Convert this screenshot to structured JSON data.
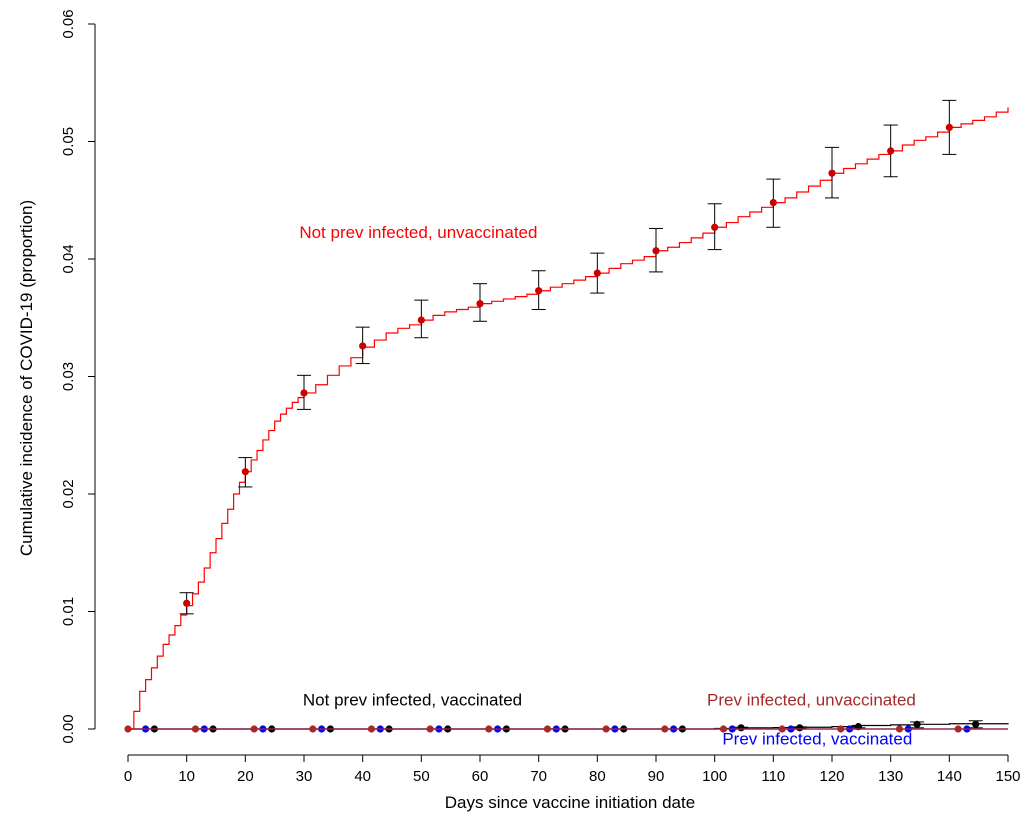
{
  "chart_data": {
    "type": "line",
    "xlabel": "Days since vaccine initiation date",
    "ylabel": "Cumulative incidence of COVID-19 (proportion)",
    "xlim": [
      0,
      150
    ],
    "ylim": [
      0,
      0.06
    ],
    "x_ticks": [
      "0",
      "10",
      "20",
      "30",
      "40",
      "50",
      "60",
      "70",
      "80",
      "90",
      "100",
      "110",
      "120",
      "130",
      "140",
      "150"
    ],
    "y_ticks": [
      "0.00",
      "0.01",
      "0.02",
      "0.03",
      "0.04",
      "0.05",
      "0.06"
    ],
    "grid": false,
    "series": [
      {
        "name": "Not prev infected, unvaccinated",
        "color": "#ff0000",
        "marker_color": "#cc0000",
        "label_color": "#ff0000",
        "curve": [
          [
            0,
            0
          ],
          [
            1,
            0.0015
          ],
          [
            2,
            0.0032
          ],
          [
            3,
            0.0042
          ],
          [
            4,
            0.0052
          ],
          [
            5,
            0.0062
          ],
          [
            6,
            0.0072
          ],
          [
            7,
            0.008
          ],
          [
            8,
            0.0088
          ],
          [
            9,
            0.0097
          ],
          [
            10,
            0.0105
          ],
          [
            11,
            0.0115
          ],
          [
            12,
            0.0125
          ],
          [
            13,
            0.0137
          ],
          [
            14,
            0.015
          ],
          [
            15,
            0.0162
          ],
          [
            16,
            0.0175
          ],
          [
            17,
            0.0187
          ],
          [
            18,
            0.02
          ],
          [
            19,
            0.021
          ],
          [
            20,
            0.0219
          ],
          [
            21,
            0.0229
          ],
          [
            22,
            0.0237
          ],
          [
            23,
            0.0246
          ],
          [
            24,
            0.0254
          ],
          [
            25,
            0.0262
          ],
          [
            26,
            0.0268
          ],
          [
            27,
            0.0273
          ],
          [
            28,
            0.0278
          ],
          [
            29,
            0.0282
          ],
          [
            30,
            0.0286
          ],
          [
            32,
            0.0293
          ],
          [
            34,
            0.0301
          ],
          [
            36,
            0.0309
          ],
          [
            38,
            0.0316
          ],
          [
            40,
            0.0325
          ],
          [
            42,
            0.0331
          ],
          [
            44,
            0.0337
          ],
          [
            46,
            0.0341
          ],
          [
            48,
            0.0344
          ],
          [
            50,
            0.0348
          ],
          [
            52,
            0.0352
          ],
          [
            54,
            0.0355
          ],
          [
            56,
            0.0357
          ],
          [
            58,
            0.0359
          ],
          [
            60,
            0.0362
          ],
          [
            62,
            0.0364
          ],
          [
            64,
            0.0366
          ],
          [
            66,
            0.0368
          ],
          [
            68,
            0.037
          ],
          [
            70,
            0.0373
          ],
          [
            72,
            0.0376
          ],
          [
            74,
            0.0379
          ],
          [
            76,
            0.0382
          ],
          [
            78,
            0.0385
          ],
          [
            80,
            0.0388
          ],
          [
            82,
            0.0392
          ],
          [
            84,
            0.0396
          ],
          [
            86,
            0.0399
          ],
          [
            88,
            0.0402
          ],
          [
            90,
            0.0407
          ],
          [
            92,
            0.041
          ],
          [
            94,
            0.0414
          ],
          [
            96,
            0.0418
          ],
          [
            98,
            0.0422
          ],
          [
            100,
            0.0427
          ],
          [
            102,
            0.0431
          ],
          [
            104,
            0.0436
          ],
          [
            106,
            0.044
          ],
          [
            108,
            0.0444
          ],
          [
            110,
            0.0448
          ],
          [
            112,
            0.0452
          ],
          [
            114,
            0.0457
          ],
          [
            116,
            0.0462
          ],
          [
            118,
            0.0467
          ],
          [
            120,
            0.0473
          ],
          [
            122,
            0.0477
          ],
          [
            124,
            0.0481
          ],
          [
            126,
            0.0485
          ],
          [
            128,
            0.0489
          ],
          [
            130,
            0.0492
          ],
          [
            132,
            0.0497
          ],
          [
            134,
            0.0501
          ],
          [
            136,
            0.0504
          ],
          [
            138,
            0.0508
          ],
          [
            140,
            0.0512
          ],
          [
            142,
            0.0515
          ],
          [
            144,
            0.0518
          ],
          [
            146,
            0.0521
          ],
          [
            148,
            0.0525
          ],
          [
            150,
            0.0529
          ]
        ],
        "points": [
          {
            "x": 10,
            "y": 0.0107,
            "lo": 0.0098,
            "hi": 0.0116
          },
          {
            "x": 20,
            "y": 0.0219,
            "lo": 0.0206,
            "hi": 0.0231
          },
          {
            "x": 30,
            "y": 0.0286,
            "lo": 0.0272,
            "hi": 0.0301
          },
          {
            "x": 40,
            "y": 0.0326,
            "lo": 0.0311,
            "hi": 0.0342
          },
          {
            "x": 50,
            "y": 0.0348,
            "lo": 0.0333,
            "hi": 0.0365
          },
          {
            "x": 60,
            "y": 0.0362,
            "lo": 0.0347,
            "hi": 0.0379
          },
          {
            "x": 70,
            "y": 0.0373,
            "lo": 0.0357,
            "hi": 0.039
          },
          {
            "x": 80,
            "y": 0.0388,
            "lo": 0.0371,
            "hi": 0.0405
          },
          {
            "x": 90,
            "y": 0.0407,
            "lo": 0.0389,
            "hi": 0.0426
          },
          {
            "x": 100,
            "y": 0.0427,
            "lo": 0.0408,
            "hi": 0.0447
          },
          {
            "x": 110,
            "y": 0.0448,
            "lo": 0.0427,
            "hi": 0.0468
          },
          {
            "x": 120,
            "y": 0.0473,
            "lo": 0.0452,
            "hi": 0.0495
          },
          {
            "x": 130,
            "y": 0.0492,
            "lo": 0.047,
            "hi": 0.0514
          },
          {
            "x": 140,
            "y": 0.0512,
            "lo": 0.0489,
            "hi": 0.0535
          }
        ]
      },
      {
        "name": "Prev infected, unvaccinated",
        "color": "#a52a2a",
        "marker_color": "#a52a2a",
        "label_color": "#a52a2a",
        "curve": [
          [
            0,
            0
          ],
          [
            150,
            0
          ]
        ],
        "points": [
          {
            "x": 0,
            "y": 0
          },
          {
            "x": 11.5,
            "y": 0
          },
          {
            "x": 21.5,
            "y": 0
          },
          {
            "x": 31.5,
            "y": 0
          },
          {
            "x": 41.5,
            "y": 0
          },
          {
            "x": 51.5,
            "y": 0
          },
          {
            "x": 61.5,
            "y": 0
          },
          {
            "x": 71.5,
            "y": 0
          },
          {
            "x": 81.5,
            "y": 0
          },
          {
            "x": 91.5,
            "y": 0
          },
          {
            "x": 101.5,
            "y": 0
          },
          {
            "x": 111.5,
            "y": 0
          },
          {
            "x": 121.5,
            "y": 0
          },
          {
            "x": 131.5,
            "y": 0
          },
          {
            "x": 141.5,
            "y": 0
          }
        ]
      },
      {
        "name": "Prev infected, vaccinated",
        "color": "#0000ff",
        "marker_color": "#0000ff",
        "label_color": "#0000ff",
        "curve": [
          [
            0,
            0
          ],
          [
            150,
            0
          ]
        ],
        "points": [
          {
            "x": 3,
            "y": 0
          },
          {
            "x": 13,
            "y": 0
          },
          {
            "x": 23,
            "y": 0
          },
          {
            "x": 33,
            "y": 0
          },
          {
            "x": 43,
            "y": 0
          },
          {
            "x": 53,
            "y": 0
          },
          {
            "x": 63,
            "y": 0
          },
          {
            "x": 73,
            "y": 0
          },
          {
            "x": 83,
            "y": 0
          },
          {
            "x": 93,
            "y": 0
          },
          {
            "x": 103,
            "y": 0
          },
          {
            "x": 113,
            "y": 0
          },
          {
            "x": 123,
            "y": 0
          },
          {
            "x": 133,
            "y": 0
          },
          {
            "x": 143,
            "y": 0
          }
        ]
      },
      {
        "name": "Not prev infected, vaccinated",
        "color": "#000000",
        "marker_color": "#000000",
        "label_color": "#000000",
        "curve": [
          [
            0,
            0
          ],
          [
            95,
            0
          ],
          [
            100,
            5e-05
          ],
          [
            105,
            0.0001
          ],
          [
            110,
            0.00012
          ],
          [
            115,
            0.00015
          ],
          [
            120,
            0.0002
          ],
          [
            125,
            0.0003
          ],
          [
            130,
            0.00035
          ],
          [
            135,
            0.0004
          ],
          [
            140,
            0.00045
          ],
          [
            150,
            0.0005
          ]
        ],
        "points": [
          {
            "x": 4.5,
            "y": 0
          },
          {
            "x": 14.5,
            "y": 0
          },
          {
            "x": 24.5,
            "y": 0
          },
          {
            "x": 34.5,
            "y": 0
          },
          {
            "x": 44.5,
            "y": 0
          },
          {
            "x": 54.5,
            "y": 0
          },
          {
            "x": 64.5,
            "y": 0
          },
          {
            "x": 74.5,
            "y": 0
          },
          {
            "x": 84.5,
            "y": 0
          },
          {
            "x": 94.5,
            "y": 0
          },
          {
            "x": 104.5,
            "y": 0.0001,
            "lo": 5e-05,
            "hi": 0.00015
          },
          {
            "x": 114.5,
            "y": 0.0001,
            "lo": 5e-05,
            "hi": 0.00018
          },
          {
            "x": 124.5,
            "y": 0.0002,
            "lo": 0.0001,
            "hi": 0.0003
          },
          {
            "x": 134.5,
            "y": 0.0004,
            "lo": 0.0001,
            "hi": 0.0006
          },
          {
            "x": 144.5,
            "y": 0.0004,
            "lo": 0.0001,
            "hi": 0.0007
          }
        ]
      }
    ],
    "annotations": [
      {
        "text": "Not prev infected, unvaccinated",
        "color": "#ff0000",
        "x": 49.5,
        "y": 0.0418
      },
      {
        "text": "Not prev infected, vaccinated",
        "color": "#000000",
        "x": 48.5,
        "y": 0.002
      },
      {
        "text": "Prev infected, unvaccinated",
        "color": "#a52a2a",
        "x": 116.5,
        "y": 0.002
      },
      {
        "text": "Prev infected, vaccinated",
        "color": "#0000ff",
        "x": 117.5,
        "y": -0.0013
      }
    ]
  }
}
